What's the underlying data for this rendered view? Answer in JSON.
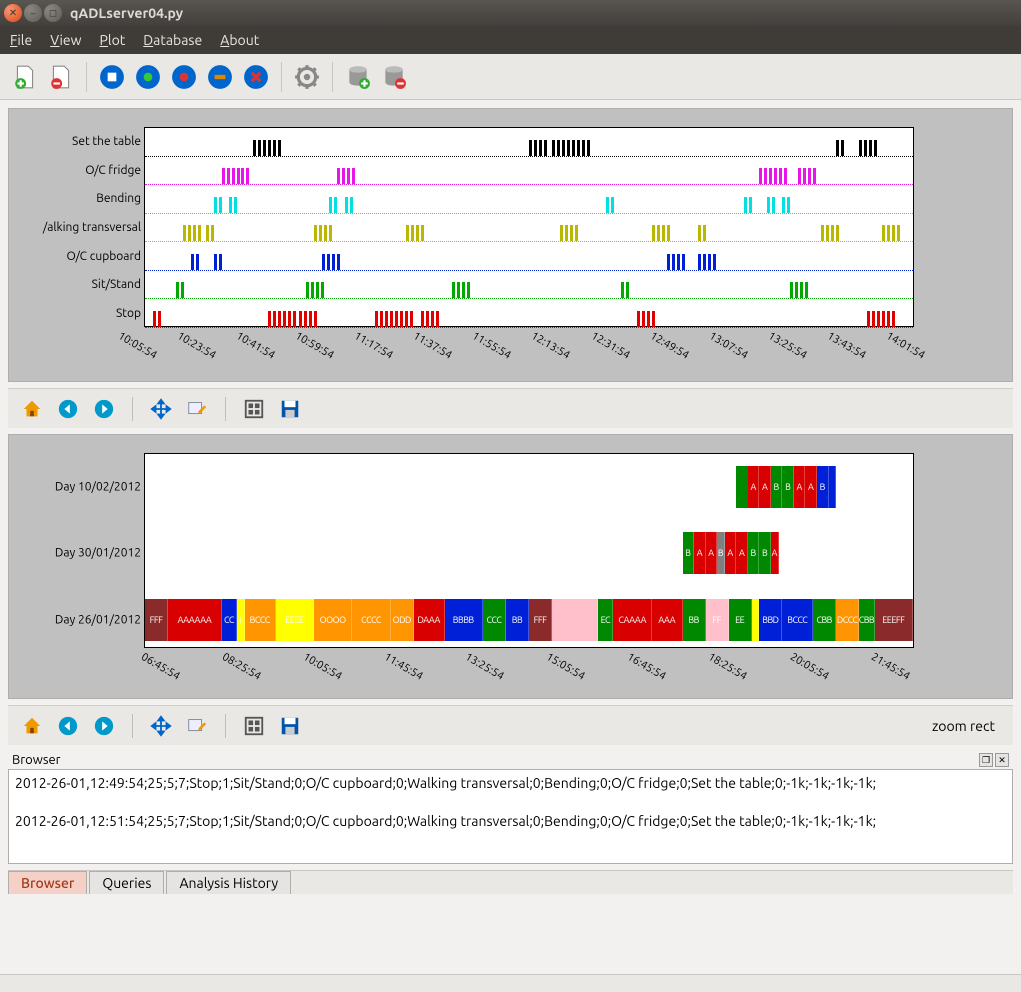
{
  "window": {
    "title": "qADLserver04.py"
  },
  "menu": {
    "file": "File",
    "view": "View",
    "plot": "Plot",
    "database": "Database",
    "about": "About"
  },
  "toolbar_icons": [
    "doc-add",
    "doc-remove",
    "rec-stop",
    "rec-add",
    "rec-red",
    "rec-minus",
    "rec-delete",
    "gear",
    "db-add",
    "db-remove"
  ],
  "chart1": {
    "tracks": [
      {
        "label": "Set the table",
        "color": "#000000",
        "events": [
          [
            14,
            3
          ],
          [
            50,
            2
          ],
          [
            53,
            4
          ],
          [
            90,
            1
          ],
          [
            93,
            2
          ]
        ]
      },
      {
        "label": "O/C fridge",
        "color": "#e815e8",
        "events": [
          [
            10,
            2
          ],
          [
            12.5,
            1
          ],
          [
            25,
            2
          ],
          [
            80,
            3
          ],
          [
            85,
            2
          ]
        ]
      },
      {
        "label": "Bending",
        "color": "#00e0e0",
        "events": [
          [
            9,
            1
          ],
          [
            11,
            1
          ],
          [
            24,
            1
          ],
          [
            26,
            1
          ],
          [
            60,
            1
          ],
          [
            78,
            1
          ],
          [
            81,
            1
          ],
          [
            83,
            1
          ]
        ]
      },
      {
        "label": "/alking transversal",
        "color": "#b8b800",
        "events": [
          [
            5,
            2
          ],
          [
            8,
            1
          ],
          [
            22,
            2
          ],
          [
            34,
            2
          ],
          [
            54,
            2
          ],
          [
            66,
            2
          ],
          [
            72,
            1
          ],
          [
            88,
            2
          ],
          [
            96,
            2
          ]
        ]
      },
      {
        "label": "O/C cupboard",
        "color": "#0020d8",
        "events": [
          [
            6,
            1
          ],
          [
            9,
            1
          ],
          [
            23,
            2
          ],
          [
            68,
            2
          ],
          [
            72,
            2
          ]
        ]
      },
      {
        "label": "Sit/Stand",
        "color": "#00a800",
        "events": [
          [
            4,
            1
          ],
          [
            21,
            2
          ],
          [
            40,
            2
          ],
          [
            62,
            1
          ],
          [
            84,
            2
          ]
        ]
      },
      {
        "label": "Stop",
        "color": "#e00000",
        "events": [
          [
            1,
            1
          ],
          [
            16,
            3
          ],
          [
            20,
            2
          ],
          [
            30,
            4
          ],
          [
            36,
            2
          ],
          [
            64,
            2
          ],
          [
            94,
            3
          ]
        ]
      }
    ],
    "xticks": [
      "10:05:54",
      "10:23:54",
      "10:41:54",
      "10:59:54",
      "11:17:54",
      "11:37:54",
      "11:55:54",
      "12:13:54",
      "12:31:54",
      "12:49:54",
      "13:07:54",
      "13:25:54",
      "13:43:54",
      "14:01:54"
    ]
  },
  "chart2": {
    "days": [
      {
        "label": "Day 10/02/2012",
        "y": 12,
        "segs": [
          {
            "x": 77,
            "w": 12,
            "c": "#008800",
            "t": "B"
          },
          {
            "x": 78.5,
            "w": 1.5,
            "c": "#d80000",
            "t": "A"
          },
          {
            "x": 80,
            "w": 1.5,
            "c": "#d80000",
            "t": "A"
          },
          {
            "x": 81.5,
            "w": 1.5,
            "c": "#008800",
            "t": "B"
          },
          {
            "x": 83,
            "w": 1.5,
            "c": "#008800",
            "t": "B"
          },
          {
            "x": 84.5,
            "w": 1.5,
            "c": "#d80000",
            "t": "A"
          },
          {
            "x": 86,
            "w": 1.5,
            "c": "#d80000",
            "t": "A"
          },
          {
            "x": 87.5,
            "w": 1.5,
            "c": "#0020d8",
            "t": "B"
          },
          {
            "x": 89,
            "w": 1,
            "c": "#0020d8",
            "t": ""
          }
        ]
      },
      {
        "label": "Day 30/01/2012",
        "y": 78,
        "segs": [
          {
            "x": 70,
            "w": 1.5,
            "c": "#008800",
            "t": "B"
          },
          {
            "x": 71.5,
            "w": 1.5,
            "c": "#d80000",
            "t": "A"
          },
          {
            "x": 73,
            "w": 1.5,
            "c": "#d80000",
            "t": "A"
          },
          {
            "x": 74.5,
            "w": 1,
            "c": "#808080",
            "t": "B"
          },
          {
            "x": 75.5,
            "w": 1.5,
            "c": "#d80000",
            "t": "A"
          },
          {
            "x": 77,
            "w": 1.5,
            "c": "#d80000",
            "t": "A"
          },
          {
            "x": 78.5,
            "w": 1.5,
            "c": "#008800",
            "t": "B"
          },
          {
            "x": 80,
            "w": 1.5,
            "c": "#008800",
            "t": "B"
          },
          {
            "x": 81.5,
            "w": 1,
            "c": "#d80000",
            "t": "A"
          }
        ]
      },
      {
        "label": "Day 26/01/2012",
        "y": 145,
        "segs": [
          {
            "x": 0,
            "w": 3,
            "c": "#8b2a2a",
            "t": "FFF"
          },
          {
            "x": 3,
            "w": 7,
            "c": "#d80000",
            "t": "AAAAAA"
          },
          {
            "x": 10,
            "w": 2,
            "c": "#0020d8",
            "t": "CC"
          },
          {
            "x": 12,
            "w": 1,
            "c": "#ffff00",
            "t": "I"
          },
          {
            "x": 13,
            "w": 4,
            "c": "#ff9500",
            "t": "BCCC"
          },
          {
            "x": 17,
            "w": 5,
            "c": "#ffff00",
            "t": "EEEE"
          },
          {
            "x": 22,
            "w": 5,
            "c": "#ff9500",
            "t": "OOOO"
          },
          {
            "x": 27,
            "w": 5,
            "c": "#ff9500",
            "t": "CCCC"
          },
          {
            "x": 32,
            "w": 3,
            "c": "#ff9500",
            "t": "ODD"
          },
          {
            "x": 35,
            "w": 4,
            "c": "#d80000",
            "t": "DAAA"
          },
          {
            "x": 39,
            "w": 5,
            "c": "#0020d8",
            "t": "BBBB"
          },
          {
            "x": 44,
            "w": 3,
            "c": "#008800",
            "t": "CCC"
          },
          {
            "x": 47,
            "w": 3,
            "c": "#0020d8",
            "t": "BB"
          },
          {
            "x": 50,
            "w": 3,
            "c": "#8b2a2a",
            "t": "FFF"
          },
          {
            "x": 53,
            "w": 6,
            "c": "#ffc0cb",
            "t": ""
          },
          {
            "x": 59,
            "w": 2,
            "c": "#008800",
            "t": "EC"
          },
          {
            "x": 61,
            "w": 5,
            "c": "#d80000",
            "t": "CAAAA"
          },
          {
            "x": 66,
            "w": 4,
            "c": "#d80000",
            "t": "AAA"
          },
          {
            "x": 70,
            "w": 3,
            "c": "#008800",
            "t": "BB"
          },
          {
            "x": 73,
            "w": 3,
            "c": "#ffc0cb",
            "t": "FF"
          },
          {
            "x": 76,
            "w": 3,
            "c": "#008800",
            "t": "EE"
          },
          {
            "x": 79,
            "w": 1,
            "c": "#ffff00",
            "t": ""
          },
          {
            "x": 80,
            "w": 3,
            "c": "#0020d8",
            "t": "BBD"
          },
          {
            "x": 83,
            "w": 4,
            "c": "#0020d8",
            "t": "BCCC"
          },
          {
            "x": 87,
            "w": 3,
            "c": "#008800",
            "t": "CBB"
          },
          {
            "x": 90,
            "w": 3,
            "c": "#ff9500",
            "t": "DCCC"
          },
          {
            "x": 93,
            "w": 2,
            "c": "#008800",
            "t": "CBB"
          },
          {
            "x": 95,
            "w": 5,
            "c": "#8b2a2a",
            "t": "EEEFF"
          }
        ]
      }
    ],
    "xticks": [
      "06:45:54",
      "08:25:54",
      "10:05:54",
      "11:45:54",
      "13:25:54",
      "15:05:54",
      "16:45:54",
      "18:25:54",
      "20:05:54",
      "21:45:54"
    ],
    "status": "zoom rect"
  },
  "nav_icons": [
    "home",
    "back",
    "forward",
    "pan",
    "edit",
    "subplot",
    "save"
  ],
  "browser": {
    "label": "Browser",
    "lines": [
      "2012-26-01,12:49:54;25;5;7;Stop;1;Sit/Stand;0;O/C cupboard;0;Walking transversal;0;Bending;0;O/C fridge;0;Set the table;0;-1k;-1k;-1k;-1k;",
      "",
      "2012-26-01,12:51:54;25;5;7;Stop;1;Sit/Stand;0;O/C cupboard;0;Walking transversal;0;Bending;0;O/C fridge;0;Set the table;0;-1k;-1k;-1k;-1k;"
    ]
  },
  "tabs": {
    "items": [
      "Browser",
      "Queries",
      "Analysis History"
    ],
    "active": 0
  },
  "colors": {
    "panel_bg": "#c0c0c0",
    "window_bg": "#f2f1f0"
  }
}
